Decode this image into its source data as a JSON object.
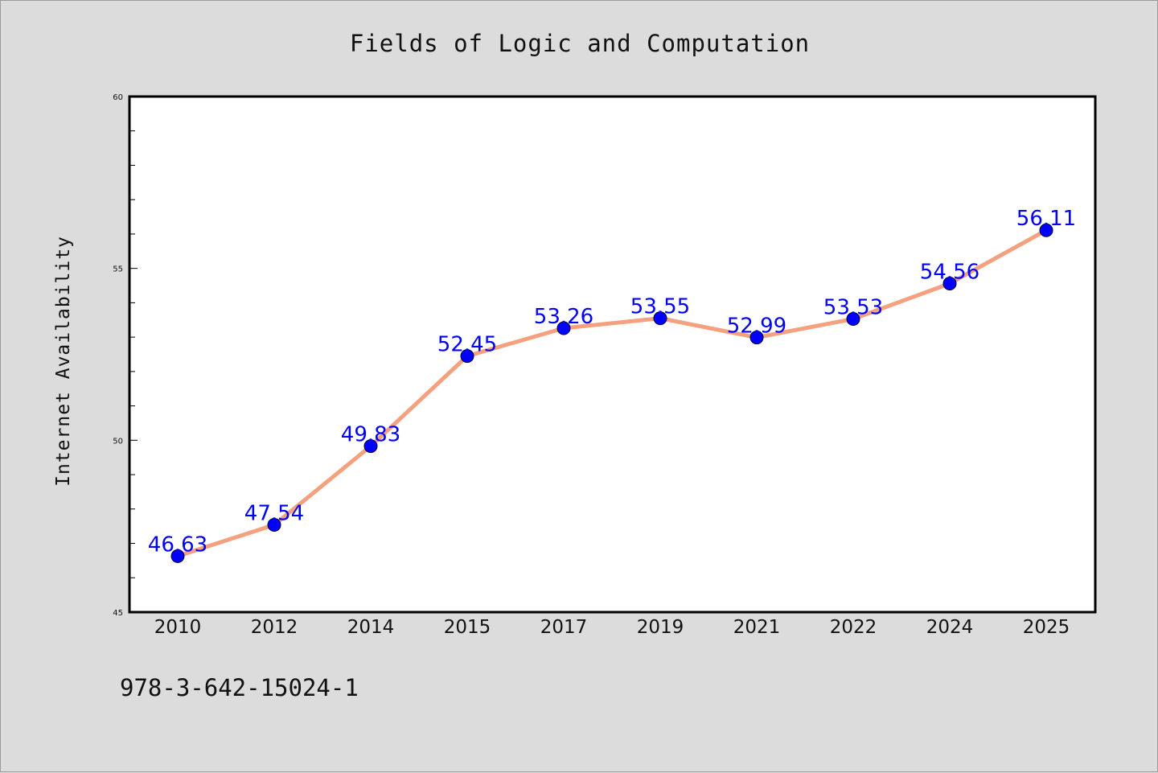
{
  "chart_data": {
    "type": "line",
    "title": "Fields of Logic and Computation",
    "xlabel": "",
    "ylabel": "Internet Availability",
    "categories": [
      "2010",
      "2012",
      "2014",
      "2015",
      "2017",
      "2019",
      "2021",
      "2022",
      "2024",
      "2025"
    ],
    "series": [
      {
        "values": [
          46.63,
          47.54,
          49.83,
          52.45,
          53.26,
          53.55,
          52.99,
          53.53,
          54.56,
          56.11
        ],
        "data_labels": [
          "46.63",
          "47.54",
          "49.83",
          "52.45",
          "53.26",
          "53.55",
          "52.99",
          "53.53",
          "54.56",
          "56.11"
        ],
        "line_color": "#f5a07e",
        "marker_color": "#0000ff"
      }
    ],
    "ylim": [
      45,
      60
    ],
    "yticks": [
      "45",
      "50",
      "55",
      "60"
    ],
    "grid": false,
    "legend": "none",
    "footnote": "978-3-642-15024-1"
  }
}
